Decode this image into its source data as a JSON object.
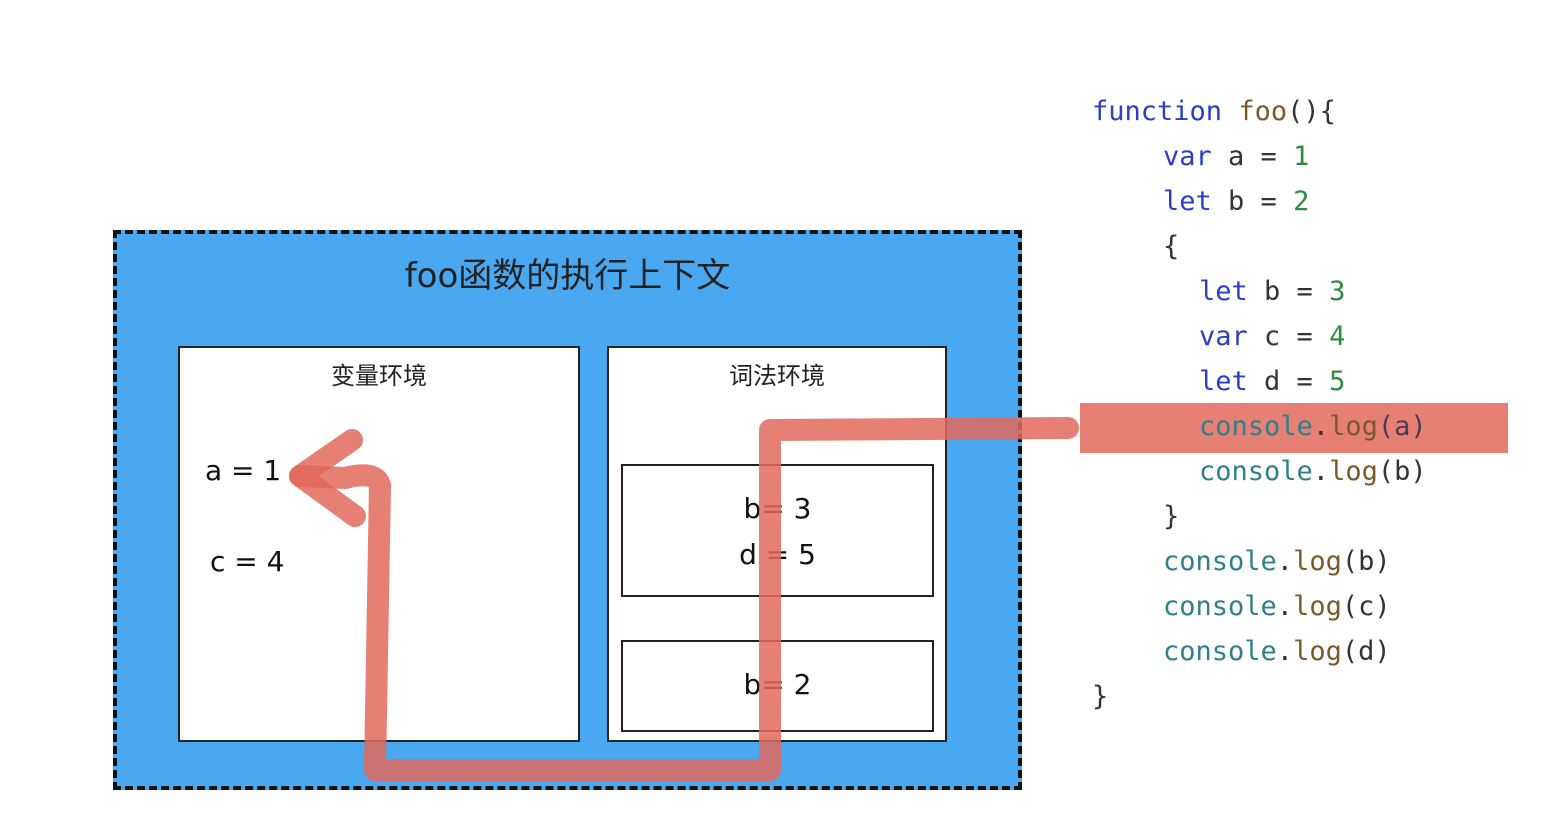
{
  "context": {
    "title": "foo函数的执行上下文",
    "variable_env": {
      "label": "变量环境",
      "items": [
        "a = 1",
        "c = 4"
      ]
    },
    "lexical_env": {
      "label": "词法环境",
      "frames": [
        [
          "b= 3",
          "d = 5"
        ],
        [
          "b= 2"
        ]
      ]
    }
  },
  "code": {
    "highlight_line": 7,
    "highlight_color": "#e2685c",
    "lines": [
      [
        {
          "text": "function",
          "color": "#2b3fc4"
        },
        {
          "text": " ",
          "color": "#333"
        },
        {
          "text": "foo",
          "color": "#7a5a2a"
        },
        {
          "text": "(){",
          "color": "#333"
        }
      ],
      [
        {
          "text": "var",
          "color": "#2b3fc4"
        },
        {
          "text": " a = ",
          "color": "#333"
        },
        {
          "text": "1",
          "color": "#2e8b3e"
        }
      ],
      [
        {
          "text": "let",
          "color": "#2b3fc4"
        },
        {
          "text": " b = ",
          "color": "#333"
        },
        {
          "text": "2",
          "color": "#2e8b3e"
        }
      ],
      [
        {
          "text": "{",
          "color": "#333"
        }
      ],
      [
        {
          "text": "let",
          "color": "#2b3fc4"
        },
        {
          "text": " b = ",
          "color": "#333"
        },
        {
          "text": "3",
          "color": "#2e8b3e"
        }
      ],
      [
        {
          "text": "var",
          "color": "#2b3fc4"
        },
        {
          "text": " c = ",
          "color": "#333"
        },
        {
          "text": "4",
          "color": "#2e8b3e"
        }
      ],
      [
        {
          "text": "let",
          "color": "#2b3fc4"
        },
        {
          "text": " d = ",
          "color": "#333"
        },
        {
          "text": "5",
          "color": "#2e8b3e"
        }
      ],
      [
        {
          "text": "console",
          "color": "#2f7f8f"
        },
        {
          "text": ".",
          "color": "#333"
        },
        {
          "text": "log",
          "color": "#7a5a2a"
        },
        {
          "text": "(a)",
          "color": "#4a3a5a"
        }
      ],
      [
        {
          "text": "console",
          "color": "#2f7f8f"
        },
        {
          "text": ".",
          "color": "#333"
        },
        {
          "text": "log",
          "color": "#7a5a2a"
        },
        {
          "text": "(b)",
          "color": "#333"
        }
      ],
      [
        {
          "text": "}",
          "color": "#333"
        }
      ],
      [
        {
          "text": "console",
          "color": "#2f7f8f"
        },
        {
          "text": ".",
          "color": "#333"
        },
        {
          "text": "log",
          "color": "#7a5a2a"
        },
        {
          "text": "(b)",
          "color": "#333"
        }
      ],
      [
        {
          "text": "console",
          "color": "#2f7f8f"
        },
        {
          "text": ".",
          "color": "#333"
        },
        {
          "text": "log",
          "color": "#7a5a2a"
        },
        {
          "text": "(c)",
          "color": "#333"
        }
      ],
      [
        {
          "text": "console",
          "color": "#2f7f8f"
        },
        {
          "text": ".",
          "color": "#333"
        },
        {
          "text": "log",
          "color": "#7a5a2a"
        },
        {
          "text": "(d)",
          "color": "#333"
        }
      ],
      [
        {
          "text": "}",
          "color": "#333"
        }
      ]
    ]
  }
}
